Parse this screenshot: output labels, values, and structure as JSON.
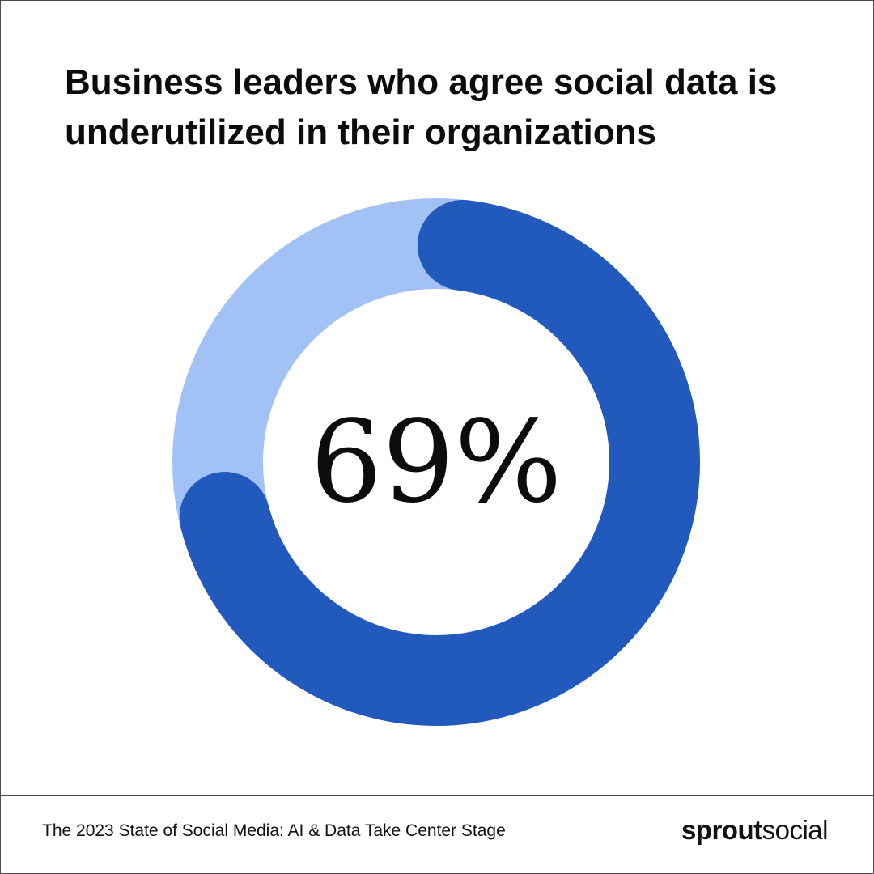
{
  "title": "Business leaders who agree social data is underutilized in their organizations",
  "chart_data": {
    "type": "pie",
    "variant": "donut",
    "value_label": "69%",
    "values": [
      69,
      31
    ],
    "colors": [
      "#2259bd",
      "#a2c1f5"
    ]
  },
  "footer": {
    "source": "The 2023 State of Social Media: AI & Data Take Center Stage",
    "logo_bold": "sprout",
    "logo_light": "social"
  }
}
